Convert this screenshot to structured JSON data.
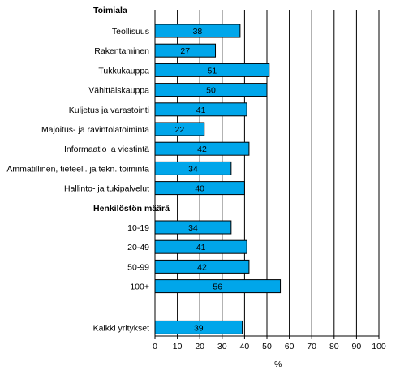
{
  "chart_data": {
    "type": "bar",
    "orientation": "horizontal",
    "xlabel": "%",
    "xlim": [
      0,
      100
    ],
    "xticks": [
      0,
      10,
      20,
      30,
      40,
      50,
      60,
      70,
      80,
      90,
      100
    ],
    "grid": "vertical",
    "bar_color": "#00a6ea",
    "groups": [
      {
        "title": "Toimiala",
        "items": [
          {
            "label": "Teollisuus",
            "value": 38
          },
          {
            "label": "Rakentaminen",
            "value": 27
          },
          {
            "label": "Tukkukauppa",
            "value": 51
          },
          {
            "label": "Vähittäiskauppa",
            "value": 50
          },
          {
            "label": "Kuljetus ja varastointi",
            "value": 41
          },
          {
            "label": "Majoitus- ja ravintolatoiminta",
            "value": 22
          },
          {
            "label": "Informaatio ja viestintä",
            "value": 42
          },
          {
            "label": "Ammatillinen, tieteell. ja tekn. toiminta",
            "value": 34
          },
          {
            "label": "Hallinto- ja tukipalvelut",
            "value": 40
          }
        ]
      },
      {
        "title": "Henkilöstön määrä",
        "items": [
          {
            "label": "10-19",
            "value": 34
          },
          {
            "label": "20-49",
            "value": 41
          },
          {
            "label": "50-99",
            "value": 42
          },
          {
            "label": "100+",
            "value": 56
          }
        ]
      },
      {
        "title": "",
        "items": [
          {
            "label": "Kaikki yritykset",
            "value": 39
          }
        ]
      }
    ]
  }
}
